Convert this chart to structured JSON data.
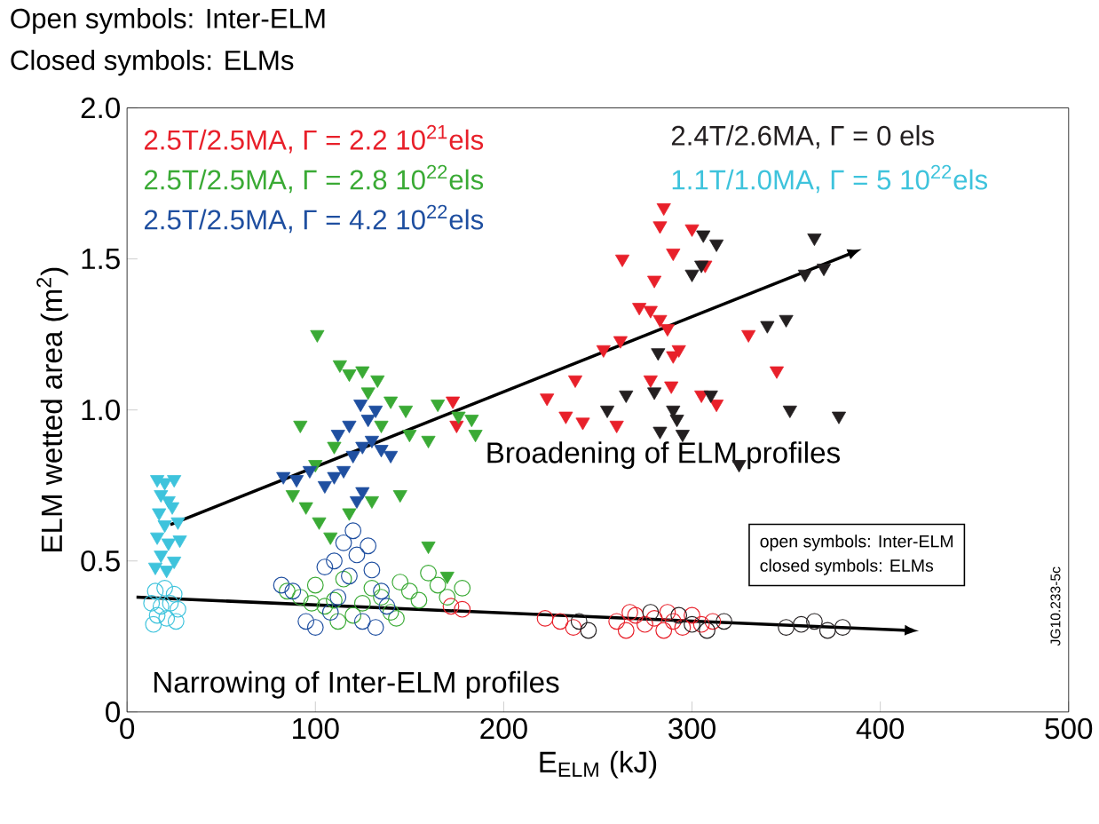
{
  "chart_data": {
    "type": "scatter",
    "title": "Open symbols: Inter-ELM",
    "subtitle": "Closed symbols: ELMs",
    "xlabel": "E$_{ELM}$ (kJ)",
    "ylabel": "ELM wetted area (m$^{2}$)",
    "xlim": [
      0,
      500
    ],
    "xticks": [
      0,
      100,
      200,
      300,
      400,
      500
    ],
    "ylim": [
      0,
      2.0
    ],
    "yticks": [
      0,
      0.5,
      {
        "value": 1.0,
        "label": "1.0"
      },
      1.5,
      {
        "value": 2.0,
        "label": "2.0"
      }
    ],
    "grid": false,
    "legend": "top",
    "annotations": [
      "Broadening of ELM profiles",
      "Narrowing of Inter-ELM profiles",
      "open symbols: Inter-ELM",
      "closed symbols: ELMs",
      "JG10.233-5c"
    ],
    "series": [
      {
        "name": "2.5T/2.5MA, Γ = 2.2 10$^{21}$els",
        "color": "#e8202a",
        "marker": "triangle",
        "x": [
          173,
          175,
          223,
          233,
          238,
          242,
          253,
          285,
          283,
          300,
          263,
          290,
          280,
          307,
          278,
          283,
          272,
          287,
          262,
          290,
          278,
          289,
          293,
          313,
          330,
          345,
          260,
          305
        ],
        "values": [
          1.03,
          0.95,
          1.04,
          0.98,
          1.1,
          0.96,
          1.2,
          1.67,
          1.61,
          1.6,
          1.5,
          1.52,
          1.43,
          1.48,
          1.33,
          1.3,
          1.34,
          1.27,
          1.23,
          1.18,
          1.1,
          1.08,
          1.2,
          1.02,
          1.25,
          1.13,
          0.95,
          1.05
        ]
      },
      {
        "color": "#e8202a",
        "marker": "circle",
        "x": [
          172,
          178,
          222,
          230,
          237,
          260,
          265,
          270,
          275,
          280,
          285,
          290,
          295,
          300,
          305,
          311,
          267,
          287
        ],
        "values": [
          0.35,
          0.34,
          0.31,
          0.3,
          0.28,
          0.3,
          0.27,
          0.32,
          0.29,
          0.31,
          0.27,
          0.3,
          0.28,
          0.32,
          0.29,
          0.3,
          0.33,
          0.33
        ]
      },
      {
        "name": "2.5T/2.5MA, Γ = 2.8 10$^{22}$els",
        "color": "#3aaa35",
        "marker": "triangle",
        "x": [
          101,
          113,
          118,
          125,
          133,
          128,
          140,
          148,
          165,
          176,
          183,
          150,
          160,
          135,
          110,
          100,
          88,
          95,
          102,
          108,
          118,
          130,
          145,
          160,
          170,
          185,
          92
        ],
        "values": [
          1.25,
          1.15,
          1.12,
          1.13,
          1.1,
          1.06,
          1.03,
          1.0,
          1.02,
          0.98,
          0.97,
          0.92,
          0.9,
          0.95,
          0.88,
          0.82,
          0.72,
          0.68,
          0.63,
          0.58,
          0.66,
          0.7,
          0.72,
          0.55,
          0.45,
          0.92,
          0.95
        ]
      },
      {
        "color": "#3aaa35",
        "marker": "circle",
        "x": [
          85,
          92,
          100,
          105,
          110,
          115,
          120,
          125,
          130,
          135,
          140,
          145,
          150,
          155,
          160,
          165,
          170,
          178,
          112,
          143,
          98
        ],
        "values": [
          0.4,
          0.38,
          0.42,
          0.35,
          0.37,
          0.44,
          0.32,
          0.36,
          0.41,
          0.38,
          0.33,
          0.43,
          0.4,
          0.37,
          0.46,
          0.42,
          0.38,
          0.41,
          0.3,
          0.31,
          0.36
        ]
      },
      {
        "name": "2.5T/2.5MA, Γ = 4.2 10$^{22}$els",
        "color": "#1f4fa0",
        "marker": "triangle",
        "x": [
          83,
          90,
          97,
          105,
          110,
          115,
          120,
          125,
          112,
          118,
          130,
          135,
          140,
          128,
          124,
          132,
          122,
          125
        ],
        "values": [
          0.78,
          0.77,
          0.8,
          0.75,
          0.78,
          0.8,
          0.85,
          0.88,
          0.92,
          0.95,
          0.9,
          0.87,
          0.85,
          0.97,
          1.02,
          1.0,
          0.7,
          0.73
        ]
      },
      {
        "color": "#1f4fa0",
        "marker": "circle",
        "x": [
          82,
          88,
          95,
          100,
          108,
          112,
          118,
          122,
          128,
          130,
          135,
          138,
          125,
          115,
          110,
          105,
          120,
          132
        ],
        "values": [
          0.42,
          0.4,
          0.3,
          0.28,
          0.33,
          0.38,
          0.45,
          0.52,
          0.55,
          0.47,
          0.4,
          0.35,
          0.3,
          0.56,
          0.5,
          0.48,
          0.6,
          0.28
        ]
      },
      {
        "name": "2.4T/2.6MA, Γ = 0 els",
        "color": "#231f20",
        "marker": "triangle",
        "x": [
          306,
          313,
          305,
          282,
          265,
          280,
          290,
          292,
          283,
          295,
          310,
          325,
          255,
          350,
          360,
          370,
          352,
          378,
          365,
          340,
          300
        ],
        "values": [
          1.58,
          1.55,
          1.48,
          1.19,
          1.05,
          1.06,
          1.0,
          0.97,
          0.93,
          0.92,
          1.05,
          0.82,
          1.0,
          1.3,
          1.45,
          1.47,
          1.0,
          0.98,
          1.57,
          1.28,
          1.45
        ]
      },
      {
        "color": "#231f20",
        "marker": "circle",
        "x": [
          240,
          245,
          278,
          293,
          300,
          317,
          350,
          358,
          365,
          372,
          380,
          308
        ],
        "values": [
          0.3,
          0.27,
          0.33,
          0.32,
          0.29,
          0.3,
          0.28,
          0.29,
          0.3,
          0.27,
          0.28,
          0.27
        ]
      },
      {
        "name": "1.1T/1.0MA, Γ = 5 10$^{22}$els",
        "color": "#3ec3dc",
        "marker": "triangle",
        "x": [
          16,
          20,
          25,
          18,
          22,
          17,
          24,
          20,
          27,
          16,
          22,
          28,
          18,
          25,
          15,
          21
        ],
        "values": [
          0.77,
          0.76,
          0.77,
          0.72,
          0.7,
          0.66,
          0.68,
          0.62,
          0.63,
          0.58,
          0.56,
          0.57,
          0.52,
          0.5,
          0.48,
          0.47
        ]
      },
      {
        "color": "#3ec3dc",
        "marker": "circle",
        "x": [
          15,
          20,
          25,
          13,
          18,
          23,
          27,
          16,
          21,
          26,
          14
        ],
        "values": [
          0.4,
          0.41,
          0.39,
          0.36,
          0.35,
          0.36,
          0.34,
          0.32,
          0.31,
          0.3,
          0.29
        ]
      },
      {
        "type": "line",
        "color": "#000000",
        "marker": "none",
        "x": [
          23,
          385
        ],
        "values": [
          0.62,
          1.52
        ]
      },
      {
        "type": "line",
        "color": "#000000",
        "marker": "none",
        "x": [
          5,
          415
        ],
        "values": [
          0.38,
          0.27
        ]
      }
    ]
  }
}
